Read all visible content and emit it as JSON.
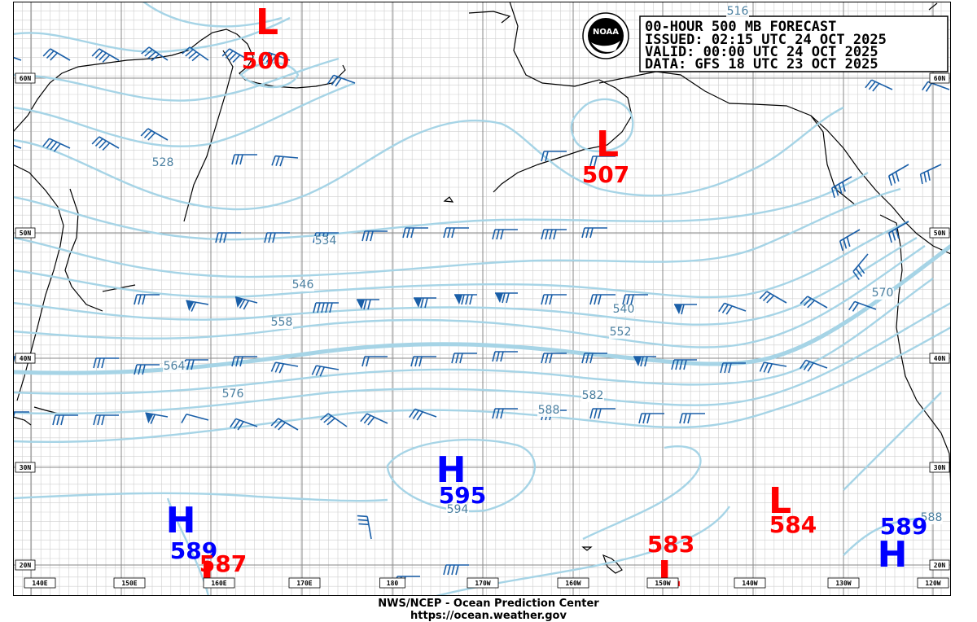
{
  "header": {
    "line1": "00-HOUR 500 MB FORECAST",
    "line2": "ISSUED: 02:15 UTC 24 OCT 2025",
    "line3": "VALID:  00:00 UTC 24 OCT 2025",
    "line4": "DATA:  GFS 18 UTC 23 OCT 2025"
  },
  "logo": {
    "text": "NOAA"
  },
  "footer": {
    "line1": "NWS/NCEP - Ocean Prediction Center",
    "line2": "https://ocean.weather.gov"
  },
  "lat_labels": [
    "60N",
    "50N",
    "40N",
    "30N",
    "20N"
  ],
  "lon_labels": [
    "140E",
    "150E",
    "160E",
    "170E",
    "180",
    "170W",
    "160W",
    "150W",
    "140W",
    "130W",
    "120W"
  ],
  "pressure_centers": [
    {
      "type": "L",
      "value": "500",
      "color": "#ff0000"
    },
    {
      "type": "L",
      "value": "507",
      "color": "#ff0000"
    },
    {
      "type": "H",
      "value": "595",
      "color": "#0000ff"
    },
    {
      "type": "H",
      "value": "589",
      "color": "#0000ff"
    },
    {
      "type": "L",
      "value": "587",
      "color": "#ff0000"
    },
    {
      "type": "L",
      "value": "583",
      "color": "#ff0000"
    },
    {
      "type": "L",
      "value": "584",
      "color": "#ff0000"
    },
    {
      "type": "H",
      "value": "589",
      "color": "#0000ff"
    }
  ],
  "contour_labels": [
    "528",
    "534",
    "546",
    "540",
    "558",
    "552",
    "564",
    "570",
    "576",
    "582",
    "588",
    "594",
    "588",
    "516"
  ],
  "colors": {
    "contour": "#a6d4e6",
    "contour_label": "#4a7fa0",
    "barb": "#1a5fa8",
    "high": "#0000ff",
    "low": "#ff0000",
    "grid": "#bbbbbb"
  }
}
